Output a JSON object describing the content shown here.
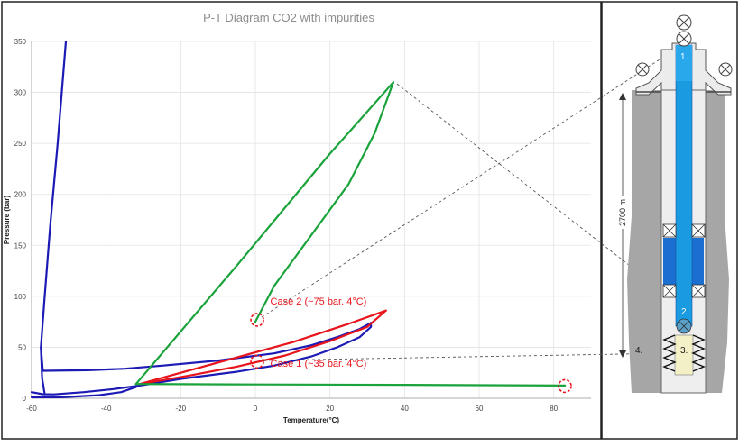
{
  "chart_data": {
    "type": "line",
    "title": "P-T Diagram  CO2 with impurities",
    "xlabel": "Temperature(°C)",
    "ylabel": "Pressure (bar)",
    "xlim": [
      -60,
      90
    ],
    "ylim": [
      0,
      350
    ],
    "xticks": [
      -60,
      -40,
      -20,
      0,
      20,
      40,
      60,
      80
    ],
    "yticks": [
      0,
      50,
      100,
      150,
      200,
      250,
      300,
      350
    ],
    "grid": true,
    "series": [
      {
        "color": "#1c1ab5",
        "points": [
          [
            -50.8,
            350
          ],
          [
            -53,
            250
          ],
          [
            -55,
            170
          ],
          [
            -56.5,
            100
          ],
          [
            -57.5,
            50
          ],
          [
            -57,
            27
          ]
        ]
      },
      {
        "color": "#1c1ab5",
        "points": [
          [
            -57,
            27
          ],
          [
            -45,
            27.5
          ],
          [
            -35,
            29
          ],
          [
            -25,
            32
          ],
          [
            -10,
            37
          ],
          [
            5,
            44
          ],
          [
            15,
            52
          ],
          [
            22,
            60
          ],
          [
            28,
            68
          ],
          [
            31,
            74
          ]
        ]
      },
      {
        "color": "#1c1ab5",
        "points": [
          [
            -60,
            6
          ],
          [
            -57,
            4
          ],
          [
            -54,
            3.8
          ],
          [
            -46,
            6
          ],
          [
            -38,
            9
          ],
          [
            -30,
            13
          ],
          [
            -20,
            19
          ],
          [
            -5,
            26
          ],
          [
            5,
            32
          ],
          [
            15,
            41
          ],
          [
            22,
            50
          ],
          [
            28,
            60
          ],
          [
            31,
            70
          ],
          [
            31,
            74
          ]
        ]
      },
      {
        "color": "#1c1ab5",
        "points": [
          [
            -57.5,
            50
          ],
          [
            -57.2,
            20
          ],
          [
            -56.5,
            4
          ]
        ]
      },
      {
        "color": "#1c1ab5",
        "points": [
          [
            -60,
            1
          ],
          [
            -52,
            1
          ],
          [
            -42,
            3
          ],
          [
            -36,
            6
          ],
          [
            -32,
            11
          ]
        ]
      },
      {
        "color": "#e8141b",
        "points": [
          [
            -31,
            14
          ],
          [
            -20,
            25
          ],
          [
            -5,
            40
          ],
          [
            10,
            55
          ],
          [
            25,
            73
          ],
          [
            35,
            86
          ]
        ]
      },
      {
        "color": "#e8141b",
        "points": [
          [
            -31,
            14
          ],
          [
            -18,
            22
          ],
          [
            -5,
            31
          ],
          [
            8,
            42
          ],
          [
            20,
            56
          ],
          [
            30,
            70
          ],
          [
            35,
            86
          ]
        ]
      },
      {
        "color": "#1aa23b",
        "points": [
          [
            -32,
            14
          ],
          [
            -5,
            130
          ],
          [
            20,
            240
          ],
          [
            37,
            310
          ]
        ]
      },
      {
        "color": "#1aa23b",
        "points": [
          [
            37,
            310
          ],
          [
            32,
            260
          ],
          [
            25,
            210
          ],
          [
            14,
            155
          ],
          [
            5,
            110
          ],
          [
            0,
            75
          ]
        ]
      },
      {
        "color": "#1aa23b",
        "points": [
          [
            -32,
            14
          ],
          [
            -20,
            13.8
          ],
          [
            0,
            13.5
          ],
          [
            40,
            13.2
          ],
          [
            83,
            12.5
          ]
        ]
      }
    ],
    "markers": [
      {
        "x": 0.5,
        "y": 77
      },
      {
        "x": 0.5,
        "y": 36
      },
      {
        "x": 83,
        "y": 12
      }
    ],
    "annotations": [
      {
        "text": "Case 2 (~75 bar. 4°C)",
        "x": 4,
        "y": 92
      },
      {
        "text": "Case 1 (~35 bar. 4°C)",
        "x": 4,
        "y": 31
      }
    ]
  },
  "well": {
    "depth_label": "2700 m",
    "labels": {
      "l1": "1.",
      "l2": "2.",
      "l3": "3.",
      "l4": "4."
    }
  }
}
